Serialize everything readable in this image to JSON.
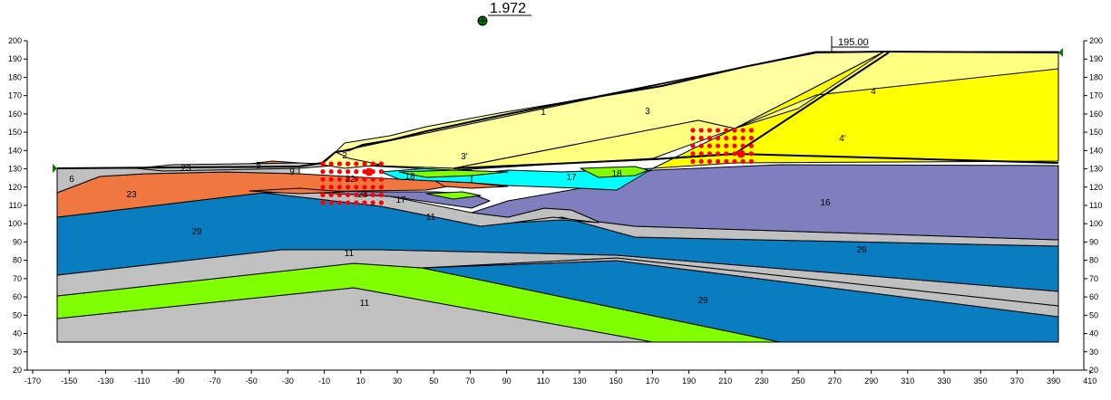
{
  "title": {
    "factor_of_safety": "1.972"
  },
  "axes": {
    "x_ticks": [
      "-170",
      "-150",
      "-130",
      "-110",
      "-90",
      "-70",
      "-50",
      "-30",
      "-10",
      "10",
      "30",
      "50",
      "70",
      "90",
      "110",
      "130",
      "150",
      "170",
      "190",
      "210",
      "230",
      "250",
      "270",
      "290",
      "310",
      "330",
      "350",
      "370",
      "390",
      "410"
    ],
    "y_ticks": [
      "200",
      "190",
      "180",
      "170",
      "160",
      "150",
      "140",
      "130",
      "120",
      "110",
      "100",
      "90",
      "80",
      "70",
      "60",
      "50",
      "40",
      "30",
      "20"
    ]
  },
  "annotations": {
    "water_level_label": "195.00"
  },
  "layer_labels": [
    {
      "id": "l6",
      "text": "6"
    },
    {
      "id": "l23a",
      "text": "23"
    },
    {
      "id": "l23b",
      "text": "23"
    },
    {
      "id": "l9",
      "text": "9"
    },
    {
      "id": "l5",
      "text": "5"
    },
    {
      "id": "l2",
      "text": "2"
    },
    {
      "id": "l1",
      "text": "1"
    },
    {
      "id": "l3",
      "text": "3"
    },
    {
      "id": "l3p",
      "text": "3'"
    },
    {
      "id": "l4",
      "text": "4"
    },
    {
      "id": "l4p",
      "text": "4'"
    },
    {
      "id": "l22",
      "text": "22"
    },
    {
      "id": "l24",
      "text": "24"
    },
    {
      "id": "l18a",
      "text": "18"
    },
    {
      "id": "l18b",
      "text": "18"
    },
    {
      "id": "l17a",
      "text": "17"
    },
    {
      "id": "l17b",
      "text": "17"
    },
    {
      "id": "l16",
      "text": "16"
    },
    {
      "id": "l11a",
      "text": "11"
    },
    {
      "id": "l11b",
      "text": "11"
    },
    {
      "id": "l11c",
      "text": "11"
    },
    {
      "id": "l29a",
      "text": "29"
    },
    {
      "id": "l29b",
      "text": "29"
    },
    {
      "id": "l29c",
      "text": "29"
    }
  ],
  "colors": {
    "orange": "#f07840",
    "grey": "#c0c0c0",
    "blue": "#0a7cc0",
    "purple": "#7f7fbf",
    "lime": "#80ff00",
    "cyan": "#00ffff",
    "yellow": "#ffff00",
    "pale_yellow": "#ffff80",
    "light_yellow": "#ffffa0",
    "slip_center": "#008000",
    "grid_points": "#ff0000"
  }
}
